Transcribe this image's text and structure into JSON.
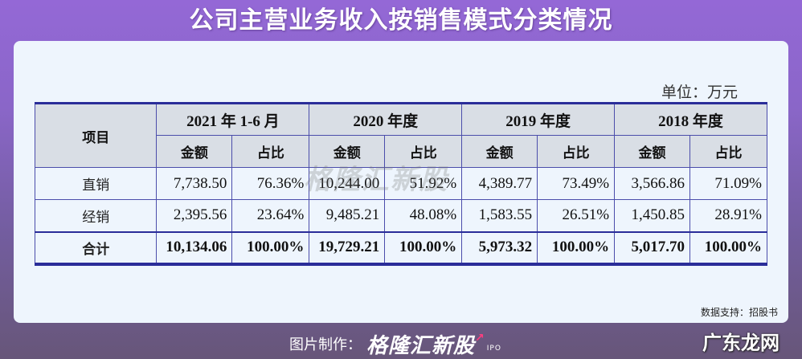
{
  "title": "公司主营业务收入按销售模式分类情况",
  "unit_label": "单位：万元",
  "table": {
    "item_header": "项目",
    "periods": [
      {
        "label": "2021 年 1-6 月",
        "amount_header": "金额",
        "share_header": "占比"
      },
      {
        "label": "2020 年度",
        "amount_header": "金额",
        "share_header": "占比"
      },
      {
        "label": "2019 年度",
        "amount_header": "金额",
        "share_header": "占比"
      },
      {
        "label": "2018 年度",
        "amount_header": "金额",
        "share_header": "占比"
      }
    ],
    "rows": [
      {
        "label": "直销",
        "values": [
          "7,738.50",
          "76.36%",
          "10,244.00",
          "51.92%",
          "4,389.77",
          "73.49%",
          "3,566.86",
          "71.09%"
        ]
      },
      {
        "label": "经销",
        "values": [
          "2,395.56",
          "23.64%",
          "9,485.21",
          "48.08%",
          "1,583.55",
          "26.51%",
          "1,450.85",
          "28.91%"
        ]
      },
      {
        "label": "合计",
        "values": [
          "10,134.06",
          "100.00%",
          "19,729.21",
          "100.00%",
          "5,973.32",
          "100.00%",
          "5,017.70",
          "100.00%"
        ]
      }
    ]
  },
  "watermark": "格隆汇新股",
  "source": "数据支持：招股书",
  "footer": {
    "credit_label": "图片制作：",
    "brand": "格隆汇新股",
    "brand_arrow": "↗",
    "brand_sub": "IPO",
    "site_mark": "广东龙网"
  },
  "colors": {
    "table_border": "#2a2d99",
    "header_bg": "#d9dee5",
    "card_bg": "#eef5fd",
    "bg_top": "#9468d6",
    "bg_bottom": "#675679"
  }
}
